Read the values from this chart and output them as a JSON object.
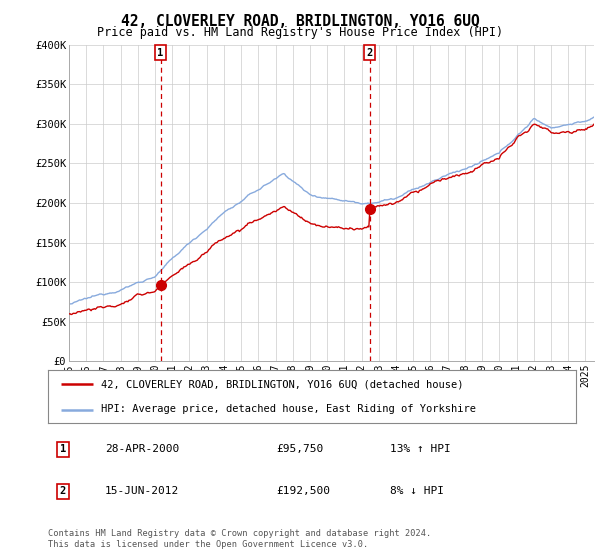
{
  "title": "42, CLOVERLEY ROAD, BRIDLINGTON, YO16 6UQ",
  "subtitle": "Price paid vs. HM Land Registry's House Price Index (HPI)",
  "ylim": [
    0,
    400000
  ],
  "xlim_start": 1995.0,
  "xlim_end": 2025.5,
  "yticks": [
    0,
    50000,
    100000,
    150000,
    200000,
    250000,
    300000,
    350000,
    400000
  ],
  "ytick_labels": [
    "£0",
    "£50K",
    "£100K",
    "£150K",
    "£200K",
    "£250K",
    "£300K",
    "£350K",
    "£400K"
  ],
  "xticks": [
    1995,
    1996,
    1997,
    1998,
    1999,
    2000,
    2001,
    2002,
    2003,
    2004,
    2005,
    2006,
    2007,
    2008,
    2009,
    2010,
    2011,
    2012,
    2013,
    2014,
    2015,
    2016,
    2017,
    2018,
    2019,
    2020,
    2021,
    2022,
    2023,
    2024,
    2025
  ],
  "purchase1_x": 2000.32,
  "purchase1_y": 95750,
  "purchase1_label": "28-APR-2000",
  "purchase1_price": "£95,750",
  "purchase1_hpi": "13% ↑ HPI",
  "purchase2_x": 2012.46,
  "purchase2_y": 192500,
  "purchase2_label": "15-JUN-2012",
  "purchase2_price": "£192,500",
  "purchase2_hpi": "8% ↓ HPI",
  "legend_line1": "42, CLOVERLEY ROAD, BRIDLINGTON, YO16 6UQ (detached house)",
  "legend_line2": "HPI: Average price, detached house, East Riding of Yorkshire",
  "footnote": "Contains HM Land Registry data © Crown copyright and database right 2024.\nThis data is licensed under the Open Government Licence v3.0.",
  "property_line_color": "#cc0000",
  "hpi_line_color": "#88aadd",
  "vline_color": "#cc0000",
  "background_color": "#ffffff",
  "plot_bg_color": "#ffffff",
  "grid_color": "#cccccc"
}
